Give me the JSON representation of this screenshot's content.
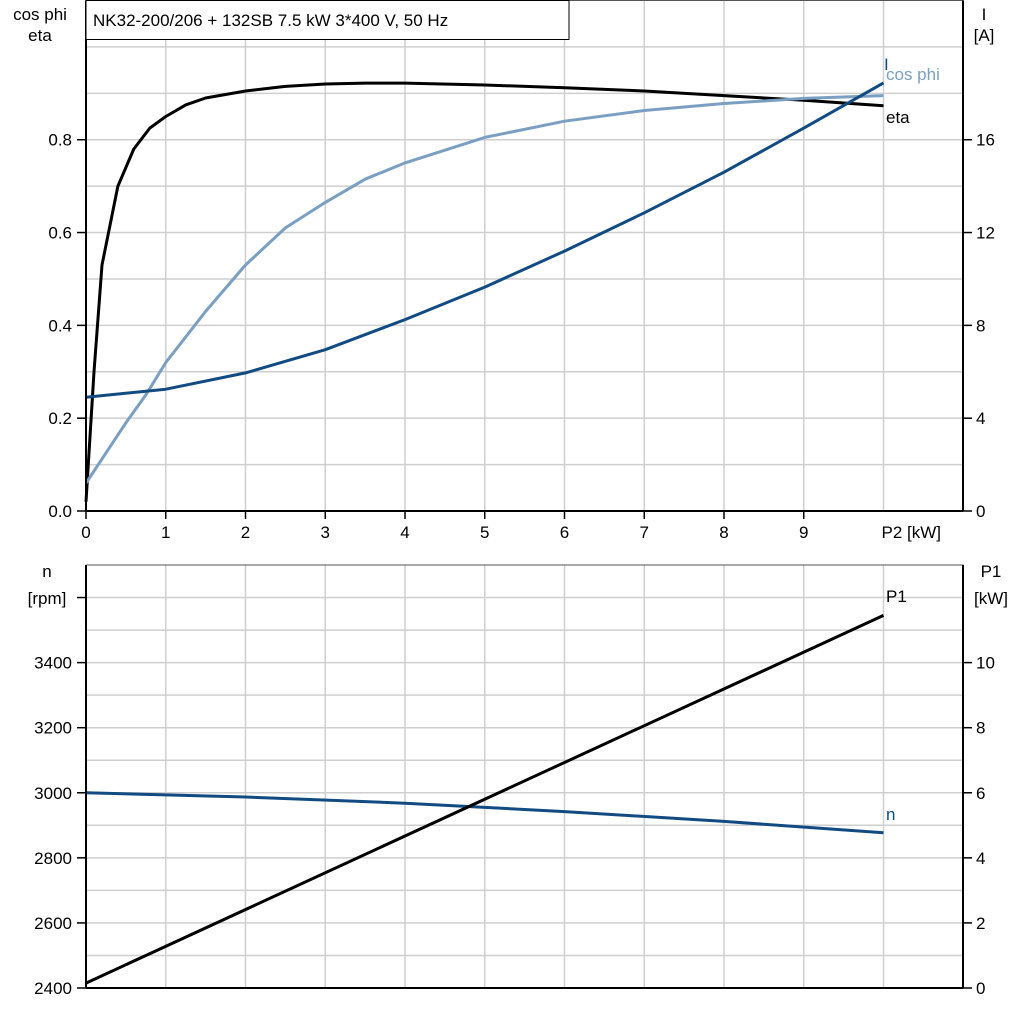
{
  "title": "NK32-200/206 + 132SB   7.5 kW   3*400 V, 50 Hz",
  "colors": {
    "eta": "#000000",
    "cos_phi": "#7a9fc2",
    "I": "#114b82",
    "n": "#114b82",
    "P1": "#000000",
    "grid": "#cfcfcf"
  },
  "chart_data": [
    {
      "type": "line",
      "xlabel": "P2 [kW]",
      "xlim": [
        0,
        11
      ],
      "xticks": [
        0,
        1,
        2,
        3,
        4,
        5,
        6,
        7,
        8,
        9
      ],
      "ylabel_left": [
        "cos phi",
        "eta"
      ],
      "ylim_left": [
        0,
        1.1
      ],
      "yticks_left": [
        "0.0",
        "0.2",
        "0.4",
        "0.6",
        "0.8"
      ],
      "ylabel_right": [
        "I",
        "[A]"
      ],
      "ylim_right": [
        0,
        22
      ],
      "yticks_right": [
        "0",
        "4",
        "8",
        "12",
        "16"
      ],
      "grid": true,
      "series": [
        {
          "name": "eta",
          "axis": "left",
          "x": [
            0,
            0.1,
            0.2,
            0.4,
            0.6,
            0.8,
            1,
            1.25,
            1.5,
            2,
            2.5,
            3,
            3.5,
            4,
            5,
            6,
            7,
            8,
            9,
            10
          ],
          "y": [
            0.02,
            0.3,
            0.53,
            0.7,
            0.78,
            0.825,
            0.85,
            0.875,
            0.89,
            0.905,
            0.915,
            0.92,
            0.922,
            0.922,
            0.918,
            0.912,
            0.905,
            0.895,
            0.885,
            0.873
          ]
        },
        {
          "name": "cos phi",
          "axis": "left",
          "x": [
            0,
            0.5,
            0.75,
            1,
            1.5,
            2,
            2.5,
            3,
            3.5,
            4,
            5,
            6,
            7,
            8,
            9,
            10
          ],
          "y": [
            0.06,
            0.19,
            0.25,
            0.32,
            0.43,
            0.53,
            0.61,
            0.665,
            0.715,
            0.75,
            0.805,
            0.84,
            0.863,
            0.878,
            0.889,
            0.895
          ]
        },
        {
          "name": "I",
          "axis": "right",
          "x": [
            0,
            1,
            2,
            3,
            4,
            5,
            6,
            7,
            8,
            9,
            10
          ],
          "y": [
            4.9,
            5.25,
            5.95,
            6.95,
            8.25,
            9.65,
            11.2,
            12.85,
            14.6,
            16.5,
            18.45
          ]
        }
      ]
    },
    {
      "type": "line",
      "xlim": [
        0,
        11
      ],
      "ylabel_left": [
        "n",
        "[rpm]"
      ],
      "ylim_left": [
        2400,
        3700
      ],
      "yticks_left": [
        "2400",
        "2600",
        "2800",
        "3000",
        "3200",
        "3400"
      ],
      "ylabel_right": [
        "P1",
        "[kW]"
      ],
      "ylim_right": [
        0,
        13
      ],
      "yticks_right": [
        "0",
        "2",
        "4",
        "6",
        "8",
        "10"
      ],
      "grid": true,
      "series": [
        {
          "name": "n",
          "axis": "left",
          "x": [
            0,
            2,
            4,
            5,
            6,
            8,
            10
          ],
          "y": [
            3000,
            2987,
            2968,
            2955,
            2942,
            2912,
            2877
          ]
        },
        {
          "name": "P1",
          "axis": "right",
          "x": [
            0,
            10
          ],
          "y": [
            0.15,
            11.45
          ]
        }
      ]
    }
  ]
}
